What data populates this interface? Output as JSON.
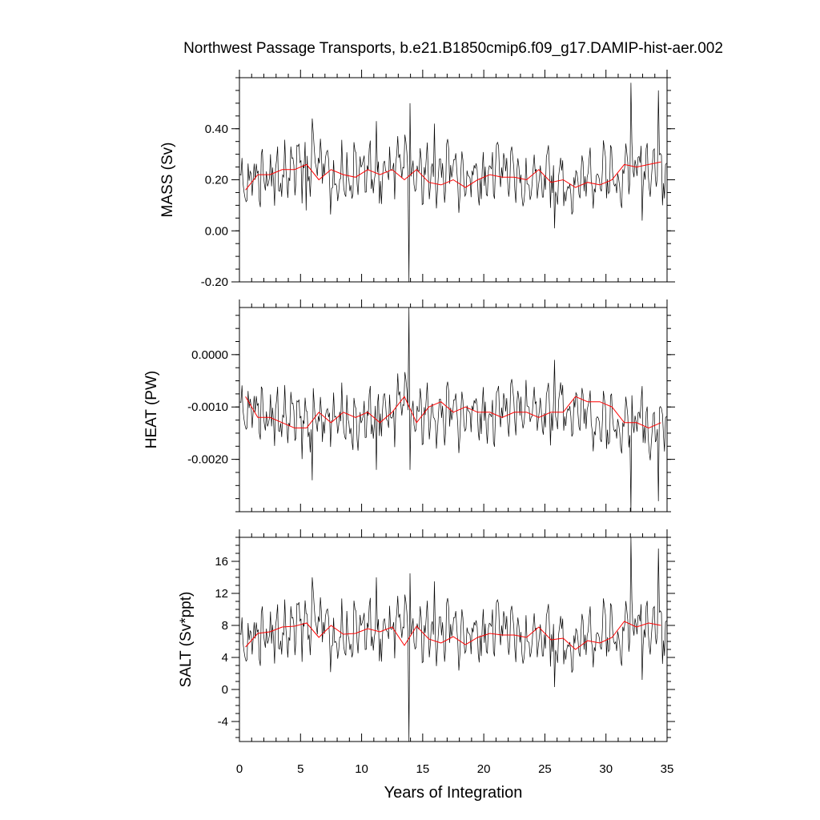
{
  "chart_data": {
    "type": "line",
    "title": "Northwest Passage Transports, b.e21.B1850cmip6.f09_g17.DAMIP-hist-aer.002",
    "xlabel": "Years of Integration",
    "xlim": [
      0,
      35
    ],
    "xticks": [
      0,
      5,
      10,
      15,
      20,
      25,
      30,
      35
    ],
    "xtick_labels": [
      "0",
      "5",
      "10",
      "15",
      "20",
      "25",
      "30",
      "35"
    ],
    "grid": false,
    "legend": "none",
    "colors": {
      "monthly": "#000000",
      "annual_mean": "#ff0000"
    },
    "panels": [
      {
        "id": "mass",
        "ylabel": "MASS (Sv)",
        "ylim": [
          -0.2,
          0.6
        ],
        "yticks": [
          -0.2,
          0.0,
          0.2,
          0.4
        ],
        "ytick_labels": [
          "-0.20",
          "0.00",
          "0.20",
          "0.40"
        ],
        "minor_step": 0.05,
        "series": [
          {
            "values": [
              0.16,
              0.22,
              0.23,
              0.21,
              0.23,
              0.25,
              0.25,
              0.26,
              0.2,
              0.22,
              0.25,
              0.23,
              0.2,
              0.24,
              0.24,
              0.21,
              0.23,
              0.21,
              0.24,
              0.21,
              0.21,
              0.21,
              0.24,
              0.23,
              0.2,
              0.18,
              0.22,
              0.22,
              0.19,
              0.18,
              0.2,
              0.22,
              0.23,
              0.21,
              0.24,
              0.25,
              0.26,
              0.24
            ],
            "extremes": [
              [
                13.85,
                -0.2
              ],
              [
                14.0,
                0.5
              ],
              [
                11.2,
                0.43
              ],
              [
                6.0,
                0.44
              ],
              [
                25.8,
                0.01
              ],
              [
                32.0,
                0.58
              ],
              [
                33.0,
                0.04
              ],
              [
                34.3,
                0.55
              ],
              [
                34.6,
                0.1
              ],
              [
                16.0,
                0.42
              ],
              [
                5.5,
                0.08
              ]
            ]
          },
          {
            "annual_x": [
              0.5,
              1.5,
              2.5,
              3.5,
              4.5,
              5.5,
              6.5,
              7.5,
              8.5,
              9.5,
              10.5,
              11.5,
              12.5,
              13.5,
              14.5,
              15.5,
              16.5,
              17.5,
              18.5,
              19.5,
              20.5,
              21.5,
              22.5,
              23.5,
              24.5,
              25.5,
              26.5,
              27.5,
              28.5,
              29.5,
              30.5,
              31.5,
              32.5,
              33.5,
              34.5
            ],
            "annual_y": [
              0.16,
              0.22,
              0.22,
              0.24,
              0.24,
              0.26,
              0.2,
              0.24,
              0.22,
              0.21,
              0.24,
              0.22,
              0.24,
              0.2,
              0.24,
              0.19,
              0.18,
              0.2,
              0.17,
              0.2,
              0.22,
              0.21,
              0.21,
              0.2,
              0.24,
              0.19,
              0.2,
              0.17,
              0.19,
              0.18,
              0.2,
              0.26,
              0.25,
              0.26,
              0.27
            ]
          }
        ]
      },
      {
        "id": "heat",
        "ylabel": "HEAT (PW)",
        "ylim": [
          -0.003,
          0.0009
        ],
        "yticks": [
          -0.002,
          -0.001,
          0.0
        ],
        "ytick_labels": [
          "-0.0020",
          "-0.0010",
          "0.0000"
        ],
        "minor_step": 0.00025,
        "series": [
          {
            "values": [
              -0.0012,
              -0.001,
              -0.0011,
              -0.0012,
              -0.0012,
              -0.0013,
              -0.0013,
              -0.0013,
              -0.0011,
              -0.0012,
              -0.0013,
              -0.0012,
              -0.0011,
              -0.0012,
              -0.001,
              -0.0012,
              -0.0011,
              -0.0012,
              -0.0011,
              -0.0012,
              -0.0011,
              -0.0011,
              -0.0012,
              -0.0011,
              -0.0011,
              -0.001,
              -0.001,
              -0.0011,
              -0.001,
              -0.001,
              -0.0011,
              -0.0012,
              -0.0013,
              -0.0013,
              -0.0013,
              -0.0013,
              -0.0014,
              -0.0013
            ],
            "extremes": [
              [
                13.85,
                0.0009
              ],
              [
                14.0,
                -0.0022
              ],
              [
                25.8,
                -0.0001
              ],
              [
                32.0,
                -0.003
              ],
              [
                34.3,
                -0.0028
              ],
              [
                33.0,
                -0.0006
              ],
              [
                6.0,
                -0.0024
              ],
              [
                11.2,
                -0.0022
              ]
            ]
          },
          {
            "annual_x": [
              0.5,
              1.5,
              2.5,
              3.5,
              4.5,
              5.5,
              6.5,
              7.5,
              8.5,
              9.5,
              10.5,
              11.5,
              12.5,
              13.5,
              14.5,
              15.5,
              16.5,
              17.5,
              18.5,
              19.5,
              20.5,
              21.5,
              22.5,
              23.5,
              24.5,
              25.5,
              26.5,
              27.5,
              28.5,
              29.5,
              30.5,
              31.5,
              32.5,
              33.5,
              34.5
            ],
            "annual_y": [
              -0.0008,
              -0.0012,
              -0.0012,
              -0.0013,
              -0.0014,
              -0.0014,
              -0.0011,
              -0.0013,
              -0.0011,
              -0.0012,
              -0.0011,
              -0.0013,
              -0.0011,
              -0.0008,
              -0.0013,
              -0.001,
              -0.0009,
              -0.0011,
              -0.001,
              -0.0011,
              -0.0011,
              -0.0012,
              -0.0011,
              -0.0011,
              -0.0012,
              -0.0011,
              -0.0011,
              -0.0008,
              -0.0009,
              -0.0009,
              -0.001,
              -0.0013,
              -0.0013,
              -0.0014,
              -0.0013
            ]
          }
        ]
      },
      {
        "id": "salt",
        "ylabel": "SALT (Sv*ppt)",
        "ylim": [
          -6.5,
          19
        ],
        "yticks": [
          -4,
          0,
          4,
          8,
          12,
          16
        ],
        "ytick_labels": [
          "-4",
          "0",
          "4",
          "8",
          "12",
          "16"
        ],
        "minor_step": 1,
        "series": [
          {
            "values": [
              5.0,
              7.0,
              7.5,
              6.8,
              7.2,
              8.0,
              8.0,
              8.3,
              6.5,
              7.0,
              8.0,
              7.5,
              6.5,
              7.6,
              7.5,
              6.8,
              7.4,
              6.8,
              7.6,
              6.8,
              6.9,
              6.9,
              7.8,
              7.4,
              6.3,
              5.9,
              7.0,
              7.0,
              6.1,
              5.8,
              6.4,
              7.0,
              7.4,
              6.8,
              7.8,
              8.0,
              8.4,
              7.8
            ],
            "extremes": [
              [
                13.85,
                -6.5
              ],
              [
                14.0,
                14.5
              ],
              [
                6.0,
                14.0
              ],
              [
                11.2,
                14.0
              ],
              [
                25.8,
                0.3
              ],
              [
                32.0,
                19.0
              ],
              [
                33.0,
                1.2
              ],
              [
                34.3,
                17.6
              ],
              [
                34.6,
                3.2
              ],
              [
                16.0,
                13.5
              ]
            ]
          },
          {
            "annual_x": [
              0.5,
              1.5,
              2.5,
              3.5,
              4.5,
              5.5,
              6.5,
              7.5,
              8.5,
              9.5,
              10.5,
              11.5,
              12.5,
              13.5,
              14.5,
              15.5,
              16.5,
              17.5,
              18.5,
              19.5,
              20.5,
              21.5,
              22.5,
              23.5,
              24.5,
              25.5,
              26.5,
              27.5,
              28.5,
              29.5,
              30.5,
              31.5,
              32.5,
              33.5,
              34.5
            ],
            "annual_y": [
              5.3,
              7.0,
              7.2,
              7.8,
              7.9,
              8.3,
              6.5,
              8.0,
              6.9,
              7.0,
              7.6,
              7.2,
              7.8,
              5.5,
              7.9,
              6.3,
              5.8,
              6.6,
              5.6,
              6.5,
              7.0,
              6.8,
              6.8,
              6.5,
              7.8,
              6.2,
              6.4,
              5.0,
              6.1,
              5.8,
              6.5,
              8.5,
              7.8,
              8.3,
              8.0
            ]
          }
        ]
      }
    ]
  }
}
